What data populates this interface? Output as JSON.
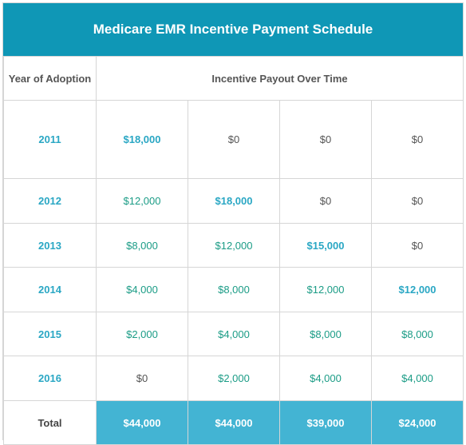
{
  "title": "Medicare EMR Incentive Payment Schedule",
  "header": {
    "year_col": "Year of Adoption",
    "payout_col": "Incentive Payout Over Time"
  },
  "rows": [
    {
      "year": "2011",
      "cells": [
        "$18,000",
        "$0",
        "$0",
        "$0"
      ]
    },
    {
      "year": "2012",
      "cells": [
        "$12,000",
        "$18,000",
        "$0",
        "$0"
      ]
    },
    {
      "year": "2013",
      "cells": [
        "$8,000",
        "$12,000",
        "$15,000",
        "$0"
      ]
    },
    {
      "year": "2014",
      "cells": [
        "$4,000",
        "$8,000",
        "$12,000",
        "$12,000"
      ]
    },
    {
      "year": "2015",
      "cells": [
        "$2,000",
        "$4,000",
        "$8,000",
        "$8,000"
      ]
    },
    {
      "year": "2016",
      "cells": [
        "$0",
        "$2,000",
        "$4,000",
        "$4,000"
      ]
    }
  ],
  "total": {
    "label": "Total",
    "cells": [
      "$44,000",
      "$44,000",
      "$39,000",
      "$24,000"
    ]
  },
  "colors": {
    "title_bar": "#0f97b6",
    "total_cells": "#43b4d3",
    "year_text": "#2aa7c4",
    "value_text": "#1b9c86"
  }
}
